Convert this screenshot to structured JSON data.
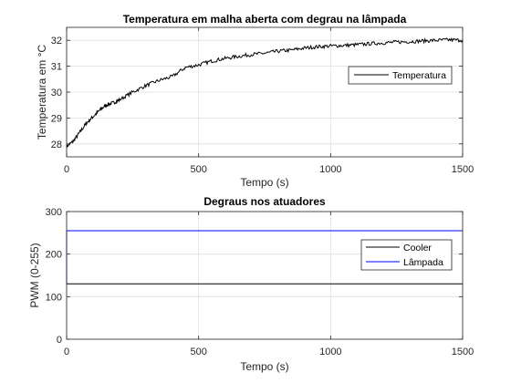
{
  "chart_data": [
    {
      "type": "line",
      "title": "Temperatura em malha aberta com degrau na lâmpada",
      "xlabel": "Tempo (s)",
      "ylabel": "Temperatura em °C",
      "xlim": [
        0,
        1500
      ],
      "ylim": [
        27.5,
        32.5
      ],
      "xticks": [
        "0",
        "500",
        "1000",
        "1500"
      ],
      "yticks": [
        "28",
        "29",
        "30",
        "31",
        "32"
      ],
      "grid": true,
      "legend_position": "right",
      "series": [
        {
          "name": "Temperatura",
          "color": "#000000",
          "x": [
            0,
            25,
            50,
            75,
            100,
            125,
            150,
            175,
            200,
            250,
            300,
            350,
            400,
            450,
            500,
            550,
            600,
            650,
            700,
            750,
            800,
            850,
            900,
            950,
            1000,
            1050,
            1100,
            1150,
            1200,
            1250,
            1300,
            1350,
            1400,
            1450,
            1500
          ],
          "y": [
            27.9,
            28.1,
            28.45,
            28.8,
            29.05,
            29.3,
            29.5,
            29.58,
            29.7,
            30.0,
            30.25,
            30.45,
            30.6,
            30.95,
            31.05,
            31.2,
            31.3,
            31.38,
            31.45,
            31.5,
            31.58,
            31.62,
            31.7,
            31.75,
            31.78,
            31.8,
            31.83,
            31.87,
            31.9,
            31.93,
            31.95,
            31.98,
            32.0,
            32.02,
            32.0
          ]
        }
      ]
    },
    {
      "type": "line",
      "title": "Degraus nos atuadores",
      "xlabel": "Tempo (s)",
      "ylabel": "PWM (0-255)",
      "xlim": [
        0,
        1500
      ],
      "ylim": [
        0,
        300
      ],
      "xticks": [
        "0",
        "500",
        "1000",
        "1500"
      ],
      "yticks": [
        "0",
        "100",
        "200",
        "300"
      ],
      "grid": true,
      "legend_position": "right",
      "series": [
        {
          "name": "Cooler",
          "color": "#000000",
          "x": [
            0,
            1500
          ],
          "y": [
            130,
            130
          ]
        },
        {
          "name": "Lâmpada",
          "color": "#0000ff",
          "x": [
            0,
            0,
            1500
          ],
          "y": [
            130,
            255,
            255
          ]
        }
      ]
    }
  ]
}
